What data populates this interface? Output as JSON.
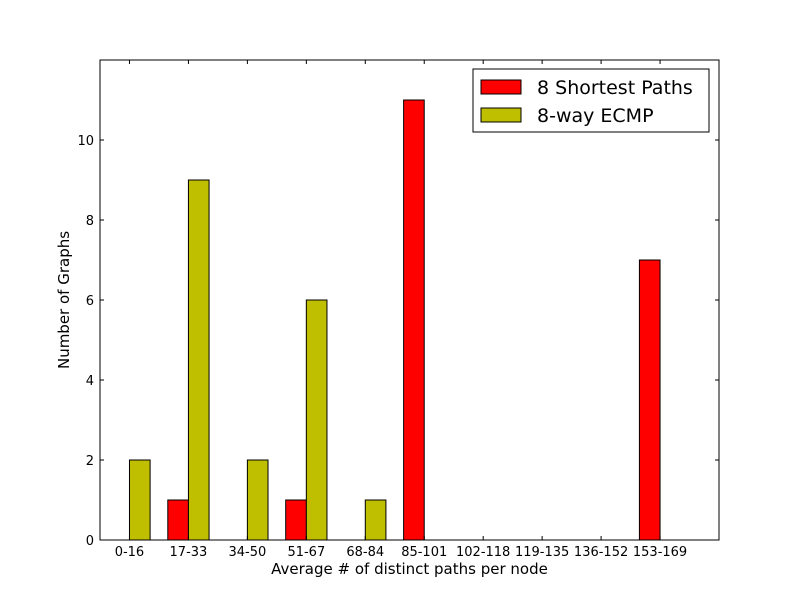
{
  "chart_data": {
    "type": "bar",
    "xlabel": "Average # of distinct paths per node",
    "ylabel": "Number of Graphs",
    "categories": [
      "0-16",
      "17-33",
      "34-50",
      "51-67",
      "68-84",
      "85-101",
      "102-118",
      "119-135",
      "136-152",
      "153-169"
    ],
    "series": [
      {
        "name": "8 Shortest Paths",
        "color": "#ff0000",
        "values": [
          0,
          1,
          0,
          1,
          0,
          11,
          0,
          0,
          0,
          7
        ]
      },
      {
        "name": "8-way ECMP",
        "color": "#bfbf00",
        "values": [
          2,
          9,
          2,
          6,
          1,
          0,
          0,
          0,
          0,
          0
        ]
      }
    ],
    "ylim": [
      0,
      12
    ],
    "yticks": [
      0,
      2,
      4,
      6,
      8,
      10
    ],
    "grid": false,
    "legend_position": "top-right"
  }
}
